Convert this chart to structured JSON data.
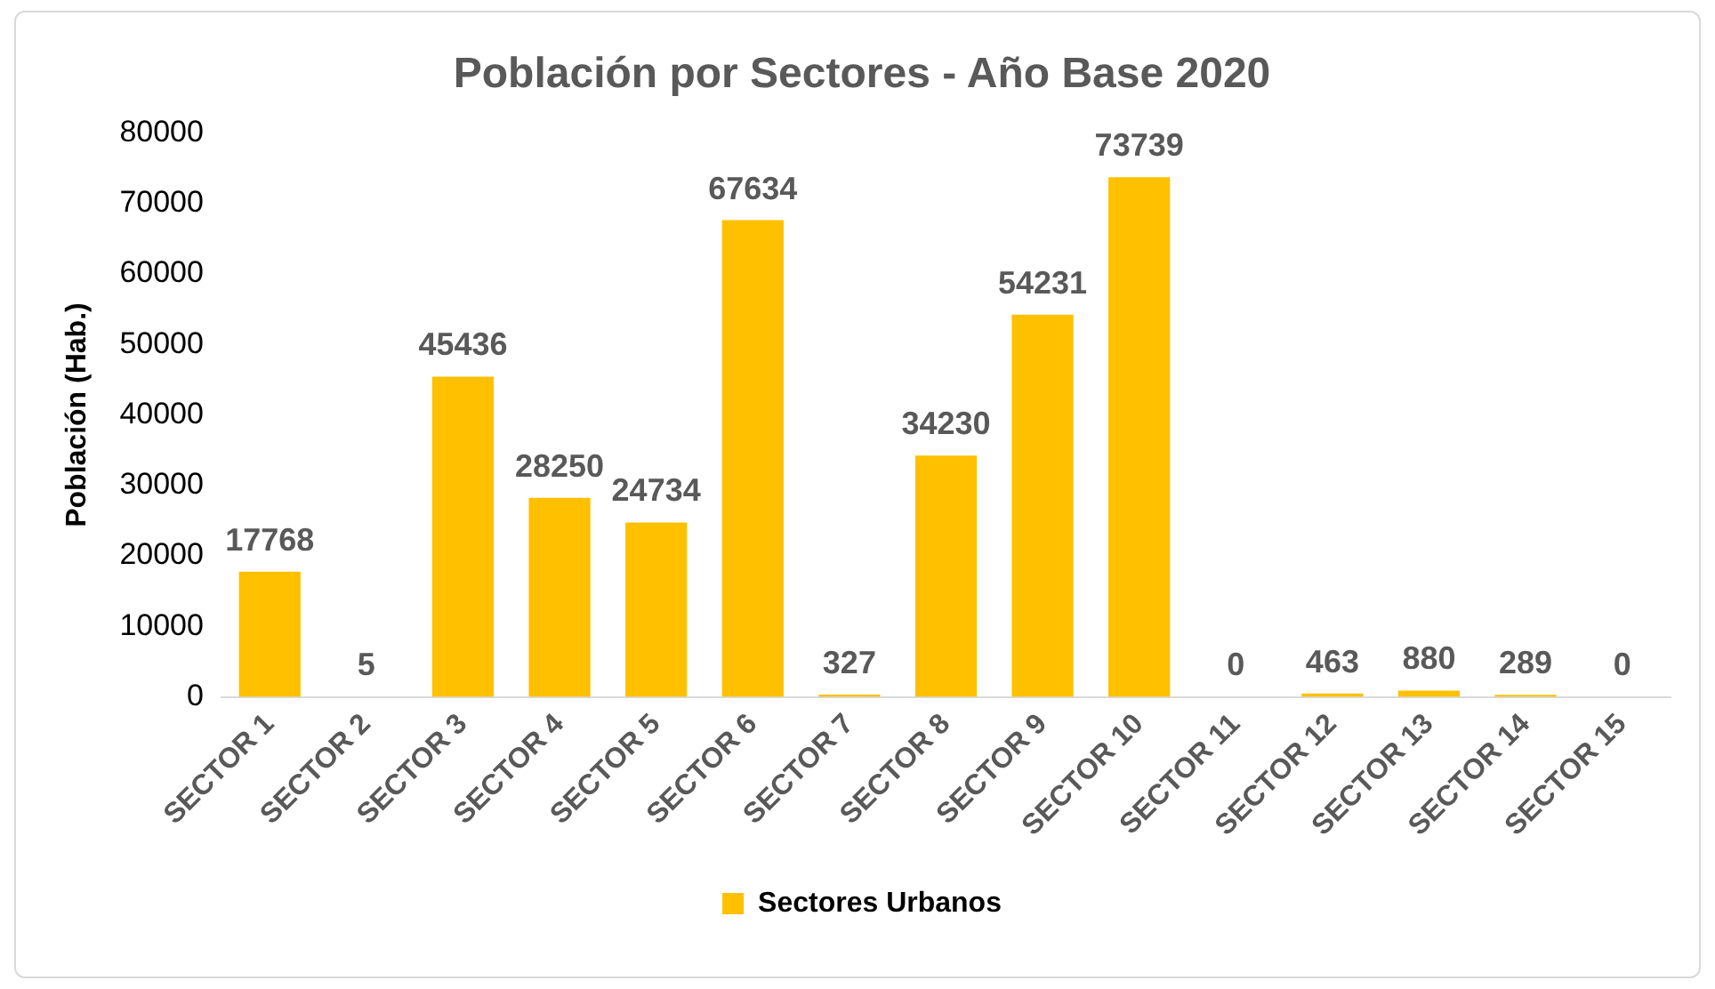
{
  "chart_data": {
    "type": "bar",
    "title": "Población por Sectores - Año Base 2020",
    "ylabel": "Población (Hab.)",
    "categories": [
      "SECTOR 1",
      "SECTOR 2",
      "SECTOR 3",
      "SECTOR 4",
      "SECTOR 5",
      "SECTOR 6",
      "SECTOR 7",
      "SECTOR 8",
      "SECTOR 9",
      "SECTOR 10",
      "SECTOR 11",
      "SECTOR 12",
      "SECTOR 13",
      "SECTOR 14",
      "SECTOR 15"
    ],
    "series": [
      {
        "name": "Sectores Urbanos",
        "color": "#ffc000",
        "values": [
          17768,
          5,
          45436,
          28250,
          24734,
          67634,
          327,
          34230,
          54231,
          73739,
          0,
          463,
          880,
          289,
          0
        ]
      }
    ],
    "ylim": [
      0,
      80000
    ],
    "yticks": [
      0,
      10000,
      20000,
      30000,
      40000,
      50000,
      60000,
      70000,
      80000
    ],
    "grid": false,
    "legend": "bottom",
    "data_labels": true
  }
}
